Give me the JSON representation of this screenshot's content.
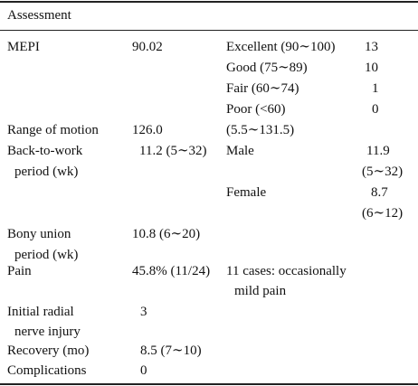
{
  "table": {
    "heading": "Assessment",
    "rows": [
      {
        "label": "MEPI",
        "value": "90.02",
        "sub": [
          {
            "label": "Excellent (90∼100)",
            "value": "13"
          },
          {
            "label": "Good (75∼89)",
            "value": "10"
          },
          {
            "label": "Fair (60∼74)",
            "value": "1"
          },
          {
            "label": "Poor (<60)",
            "value": "0"
          }
        ]
      },
      {
        "label": "Range of motion",
        "value": "126.0",
        "note": "(5.5∼131.5)"
      },
      {
        "label_lines": [
          "Back-to-work",
          "period (wk)"
        ],
        "value": "11.2 (5∼32)",
        "sub": [
          {
            "label": "Male",
            "value_lines": [
              "11.9",
              "(5∼32)"
            ]
          },
          {
            "label": "Female",
            "value_lines": [
              "8.7",
              "(6∼12)"
            ]
          }
        ]
      },
      {
        "label_lines": [
          "Bony union",
          "period (wk)"
        ],
        "value": "10.8 (6∼20)"
      },
      {
        "label": "Pain",
        "value": "45.8% (11/24)",
        "note_lines": [
          "11 cases: occasionally",
          "mild pain"
        ]
      },
      {
        "label_lines": [
          "Initial radial",
          "nerve injury"
        ],
        "value": "3"
      },
      {
        "label": "Recovery (mo)",
        "value": "8.5 (7∼10)"
      },
      {
        "label": "Complications",
        "value": "0"
      }
    ]
  }
}
